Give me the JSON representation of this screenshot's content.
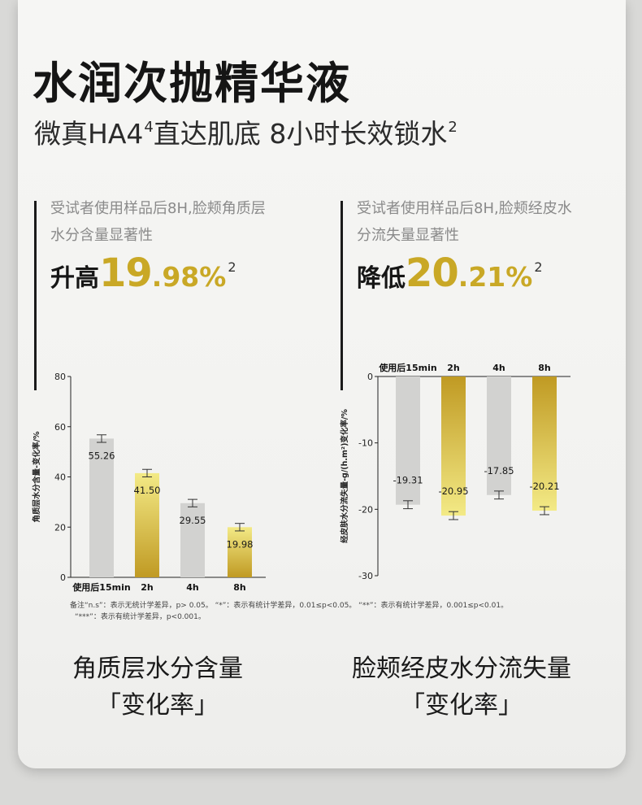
{
  "title": "水润次抛精华液",
  "subtitle": {
    "text": "微真HA4",
    "sup1": "4",
    "text2": "直达肌底  8小时长效锁水",
    "sup2": "2"
  },
  "left_panel": {
    "desc_line1": "受试者使用样品后8H,脸颊角质层",
    "desc_line2": "水分含量显著性",
    "stat_label": "升高",
    "stat_int": "19",
    "stat_dec": ".98",
    "stat_pct": "%",
    "stat_sup": "2",
    "caption_line1": "角质层水分含量",
    "caption_line2": "「变化率」"
  },
  "right_panel": {
    "desc_line1": "受试者使用样品后8H,脸颊经皮水",
    "desc_line2": "分流失量显著性",
    "stat_label": "降低",
    "stat_int": "20",
    "stat_dec": ".21",
    "stat_pct": "%",
    "stat_sup": "2",
    "caption_line1": "脸颊经皮水分流失量",
    "caption_line2": "「变化率」"
  },
  "note": {
    "line1": "备注“n.s”：表示无统计学差异，p> 0.05。   “*”：表示有统计学差异，0.01≤p<0.05。  “**”：表示有统计学差异，0.001≤p<0.01。",
    "line2": "“***”：表示有统计学差异，p<0.001。"
  },
  "colors": {
    "gray_bar": "#d2d2d0",
    "gold_light": "#f3ea86",
    "gold_dark": "#c09a23",
    "accent": "#c9a826"
  },
  "chart_data": [
    {
      "type": "bar",
      "categories": [
        "使用后15min",
        "2h",
        "4h",
        "8h"
      ],
      "values": [
        55.26,
        41.5,
        29.55,
        19.98
      ],
      "value_labels": [
        "55.26",
        "41.50",
        "29.55",
        "19.98"
      ],
      "error": [
        1.5,
        1.5,
        1.5,
        1.5
      ],
      "colors": [
        "gray",
        "gold",
        "gray",
        "gold"
      ],
      "ylabel": "角质层水分含量-变化率/%",
      "ylim": [
        0,
        80
      ],
      "yticks": [
        "0",
        "20",
        "40",
        "60",
        "80"
      ],
      "yticks_values": [
        0,
        20,
        40,
        60,
        80
      ]
    },
    {
      "type": "bar",
      "categories": [
        "使用后15min",
        "2h",
        "4h",
        "8h"
      ],
      "values": [
        -19.31,
        -20.95,
        -17.85,
        -20.21
      ],
      "value_labels": [
        "-19.31",
        "-20.95",
        "-17.85",
        "-20.21"
      ],
      "error": [
        0.6,
        0.6,
        0.6,
        0.6
      ],
      "colors": [
        "gray",
        "gold",
        "gray",
        "gold"
      ],
      "ylabel": "经皮肤水分流失量-g/(h.m²)变化率/%",
      "ylim": [
        -30,
        0
      ],
      "yticks": [
        "0",
        "-10",
        "-20",
        "-30"
      ],
      "yticks_values": [
        0,
        -10,
        -20,
        -30
      ]
    }
  ]
}
